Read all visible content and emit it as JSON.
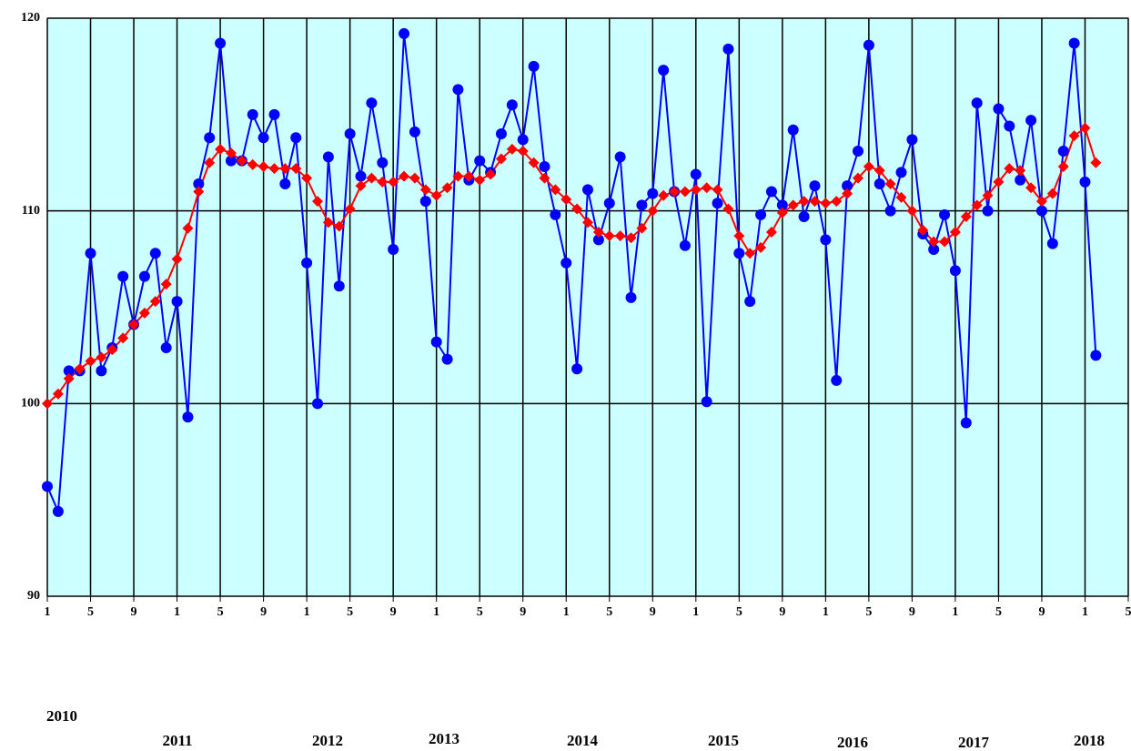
{
  "chart_data": {
    "type": "line",
    "xlim": [
      0,
      100
    ],
    "xticks": [
      {
        "value": 0,
        "label": "1"
      },
      {
        "value": 4,
        "label": "5"
      },
      {
        "value": 8,
        "label": "9"
      },
      {
        "value": 12,
        "label": "1"
      },
      {
        "value": 16,
        "label": "5"
      },
      {
        "value": 20,
        "label": "9"
      },
      {
        "value": 24,
        "label": "1"
      },
      {
        "value": 28,
        "label": "5"
      },
      {
        "value": 32,
        "label": "9"
      },
      {
        "value": 36,
        "label": "1"
      },
      {
        "value": 40,
        "label": "5"
      },
      {
        "value": 44,
        "label": "9"
      },
      {
        "value": 48,
        "label": "1"
      },
      {
        "value": 52,
        "label": "5"
      },
      {
        "value": 56,
        "label": "9"
      },
      {
        "value": 60,
        "label": "1"
      },
      {
        "value": 64,
        "label": "5"
      },
      {
        "value": 68,
        "label": "9"
      },
      {
        "value": 72,
        "label": "1"
      },
      {
        "value": 76,
        "label": "5"
      },
      {
        "value": 80,
        "label": "9"
      },
      {
        "value": 84,
        "label": "1"
      },
      {
        "value": 88,
        "label": "5"
      },
      {
        "value": 92,
        "label": "9"
      },
      {
        "value": 96,
        "label": "1"
      },
      {
        "value": 100,
        "label": "5"
      }
    ],
    "ylim": [
      90,
      120
    ],
    "yticks": [
      90,
      100,
      110,
      120
    ],
    "grid": true,
    "background": "#ccffff",
    "year_labels": [
      "2010",
      "2011",
      "2012",
      "2013",
      "2014",
      "2015",
      "2016",
      "2017",
      "2018"
    ],
    "x": [
      0,
      1,
      2,
      3,
      4,
      5,
      6,
      7,
      8,
      9,
      10,
      11,
      12,
      13,
      14,
      15,
      16,
      17,
      18,
      19,
      20,
      21,
      22,
      23,
      24,
      25,
      26,
      27,
      28,
      29,
      30,
      31,
      32,
      33,
      34,
      35,
      36,
      37,
      38,
      39,
      40,
      41,
      42,
      43,
      44,
      45,
      46,
      47,
      48,
      49,
      50,
      51,
      52,
      53,
      54,
      55,
      56,
      57,
      58,
      59,
      60,
      61,
      62,
      63,
      64,
      65,
      66,
      67,
      68,
      69,
      70,
      71,
      72,
      73,
      74,
      75,
      76,
      77,
      78,
      79,
      80,
      81,
      82,
      83,
      84,
      85,
      86,
      87,
      88,
      89,
      90,
      91,
      92,
      93,
      94,
      95,
      96,
      97
    ],
    "series": [
      {
        "color": "#0000ff",
        "marker": "circle",
        "values": [
          95.7,
          94.4,
          101.7,
          101.7,
          107.8,
          101.7,
          102.9,
          106.6,
          104.1,
          106.6,
          107.8,
          102.9,
          105.3,
          99.3,
          111.4,
          113.8,
          118.7,
          112.6,
          112.6,
          115.0,
          113.8,
          115.0,
          111.4,
          113.8,
          107.3,
          100.0,
          112.8,
          106.1,
          114.0,
          111.8,
          115.6,
          112.5,
          108.0,
          119.2,
          114.1,
          110.5,
          103.2,
          102.3,
          116.3,
          111.6,
          112.6,
          112.0,
          114.0,
          115.5,
          113.7,
          117.5,
          112.3,
          109.8,
          107.3,
          101.8,
          111.1,
          108.5,
          110.4,
          112.8,
          105.5,
          110.3,
          110.9,
          117.3,
          111.0,
          108.2,
          111.9,
          100.1,
          110.4,
          118.4,
          107.8,
          105.3,
          109.8,
          111.0,
          110.3,
          114.2,
          109.7,
          111.3,
          108.5,
          101.2,
          111.3,
          113.1,
          118.6,
          111.4,
          110.0,
          112.0,
          113.7,
          108.8,
          108.0,
          109.8,
          106.9,
          99.0,
          115.6,
          110.0,
          115.3,
          114.4,
          111.6,
          114.7,
          110.0,
          108.3,
          113.1,
          118.7,
          111.5,
          102.5
        ]
      },
      {
        "color": "#ff0000",
        "marker": "diamond",
        "values": [
          100.0,
          100.5,
          101.3,
          101.8,
          102.2,
          102.4,
          102.8,
          103.4,
          104.1,
          104.7,
          105.3,
          106.2,
          107.5,
          109.1,
          111.0,
          112.5,
          113.2,
          113.0,
          112.6,
          112.4,
          112.3,
          112.2,
          112.2,
          112.2,
          111.7,
          110.5,
          109.4,
          109.2,
          110.1,
          111.3,
          111.7,
          111.5,
          111.5,
          111.8,
          111.7,
          111.1,
          110.8,
          111.2,
          111.8,
          111.8,
          111.6,
          111.9,
          112.7,
          113.2,
          113.1,
          112.5,
          111.7,
          111.1,
          110.6,
          110.1,
          109.4,
          108.9,
          108.7,
          108.7,
          108.6,
          109.1,
          110.0,
          110.8,
          111.0,
          111.0,
          111.1,
          111.2,
          111.1,
          110.1,
          108.7,
          107.8,
          108.1,
          108.9,
          109.9,
          110.3,
          110.5,
          110.5,
          110.4,
          110.5,
          110.9,
          111.7,
          112.3,
          112.1,
          111.4,
          110.7,
          110.0,
          109.0,
          108.4,
          108.4,
          108.9,
          109.7,
          110.3,
          110.8,
          111.5,
          112.2,
          112.1,
          111.2,
          110.5,
          110.9,
          112.3,
          113.9,
          114.3,
          112.5
        ]
      }
    ]
  }
}
